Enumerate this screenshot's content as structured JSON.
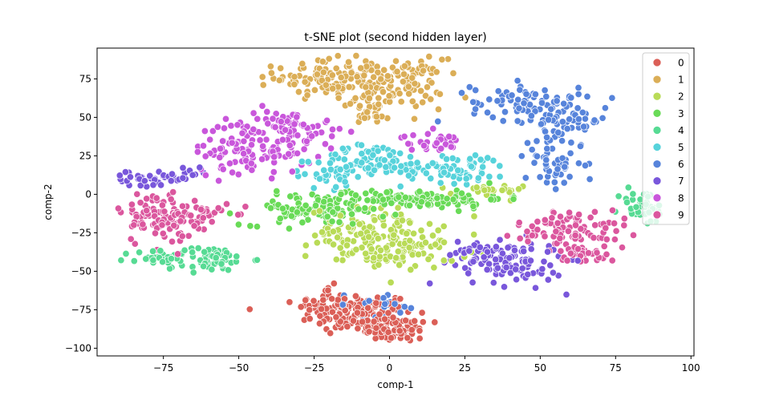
{
  "chart_data": {
    "type": "scatter",
    "title": "t-SNE plot (second hidden layer)",
    "xlabel": "comp-1",
    "ylabel": "comp-2",
    "xlim": [
      -97,
      101
    ],
    "ylim": [
      -105,
      95
    ],
    "xticks": [
      -75,
      -50,
      -25,
      0,
      25,
      50,
      75,
      100
    ],
    "yticks": [
      -100,
      -75,
      -50,
      -25,
      0,
      25,
      50,
      75
    ],
    "xtick_labels": [
      "−75",
      "−50",
      "−25",
      "0",
      "25",
      "50",
      "75",
      "100"
    ],
    "ytick_labels": [
      "−100",
      "−75",
      "−50",
      "−25",
      "0",
      "25",
      "50",
      "75"
    ],
    "legend_position": "top-right",
    "series": [
      {
        "name": "0",
        "color": "#db5f57",
        "clusters": [
          {
            "cx": -10,
            "cy": -78,
            "sx": 9,
            "sy": 7,
            "n": 140
          },
          {
            "cx": 3,
            "cy": -88,
            "sx": 5,
            "sy": 4,
            "n": 60
          },
          {
            "cx": -22,
            "cy": -70,
            "sx": 4,
            "sy": 5,
            "n": 30
          }
        ]
      },
      {
        "name": "1",
        "color": "#dbae57",
        "clusters": [
          {
            "cx": -22,
            "cy": 76,
            "sx": 8,
            "sy": 6,
            "n": 90
          },
          {
            "cx": 0,
            "cy": 72,
            "sx": 9,
            "sy": 8,
            "n": 130
          },
          {
            "cx": -5,
            "cy": 55,
            "sx": 5,
            "sy": 5,
            "n": 30
          }
        ]
      },
      {
        "name": "2",
        "color": "#b9db57",
        "clusters": [
          {
            "cx": -5,
            "cy": -25,
            "sx": 11,
            "sy": 8,
            "n": 120
          },
          {
            "cx": 5,
            "cy": -38,
            "sx": 9,
            "sy": 5,
            "n": 70
          },
          {
            "cx": 32,
            "cy": 2,
            "sx": 6,
            "sy": 2,
            "n": 25
          }
        ]
      },
      {
        "name": "3",
        "color": "#69db57",
        "clusters": [
          {
            "cx": -25,
            "cy": -10,
            "sx": 12,
            "sy": 5,
            "n": 100
          },
          {
            "cx": 10,
            "cy": -3,
            "sx": 14,
            "sy": 3,
            "n": 110
          }
        ]
      },
      {
        "name": "4",
        "color": "#57db94",
        "clusters": [
          {
            "cx": -60,
            "cy": -42,
            "sx": 7,
            "sy": 4,
            "n": 70
          },
          {
            "cx": -78,
            "cy": -42,
            "sx": 4,
            "sy": 3,
            "n": 25
          },
          {
            "cx": 84,
            "cy": -8,
            "sx": 4,
            "sy": 6,
            "n": 40
          }
        ]
      },
      {
        "name": "5",
        "color": "#57d3db",
        "clusters": [
          {
            "cx": -5,
            "cy": 22,
            "sx": 9,
            "sy": 5,
            "n": 70
          },
          {
            "cx": 22,
            "cy": 17,
            "sx": 9,
            "sy": 5,
            "n": 70
          },
          {
            "cx": -20,
            "cy": 12,
            "sx": 6,
            "sy": 4,
            "n": 30
          }
        ]
      },
      {
        "name": "6",
        "color": "#5784db",
        "clusters": [
          {
            "cx": 45,
            "cy": 60,
            "sx": 9,
            "sy": 6,
            "n": 70
          },
          {
            "cx": 58,
            "cy": 48,
            "sx": 7,
            "sy": 6,
            "n": 60
          },
          {
            "cx": 55,
            "cy": 20,
            "sx": 5,
            "sy": 8,
            "n": 50
          },
          {
            "cx": -5,
            "cy": -72,
            "sx": 8,
            "sy": 4,
            "n": 25
          }
        ]
      },
      {
        "name": "7",
        "color": "#7957db",
        "clusters": [
          {
            "cx": 40,
            "cy": -45,
            "sx": 9,
            "sy": 7,
            "n": 100
          },
          {
            "cx": 30,
            "cy": -35,
            "sx": 5,
            "sy": 3,
            "n": 25
          },
          {
            "cx": -72,
            "cy": 10,
            "sx": 6,
            "sy": 3,
            "n": 30
          },
          {
            "cx": -85,
            "cy": 10,
            "sx": 3,
            "sy": 3,
            "n": 18
          }
        ]
      },
      {
        "name": "8",
        "color": "#c957db",
        "clusters": [
          {
            "cx": -45,
            "cy": 30,
            "sx": 10,
            "sy": 8,
            "n": 120
          },
          {
            "cx": -33,
            "cy": 45,
            "sx": 8,
            "sy": 5,
            "n": 60
          },
          {
            "cx": 14,
            "cy": 34,
            "sx": 5,
            "sy": 3,
            "n": 30
          }
        ]
      },
      {
        "name": "9",
        "color": "#db579e",
        "clusters": [
          {
            "cx": -78,
            "cy": -15,
            "sx": 6,
            "sy": 9,
            "n": 80
          },
          {
            "cx": -65,
            "cy": -15,
            "sx": 6,
            "sy": 6,
            "n": 60
          },
          {
            "cx": 60,
            "cy": -22,
            "sx": 9,
            "sy": 6,
            "n": 90
          },
          {
            "cx": 65,
            "cy": -38,
            "sx": 5,
            "sy": 3,
            "n": 30
          }
        ]
      }
    ]
  }
}
